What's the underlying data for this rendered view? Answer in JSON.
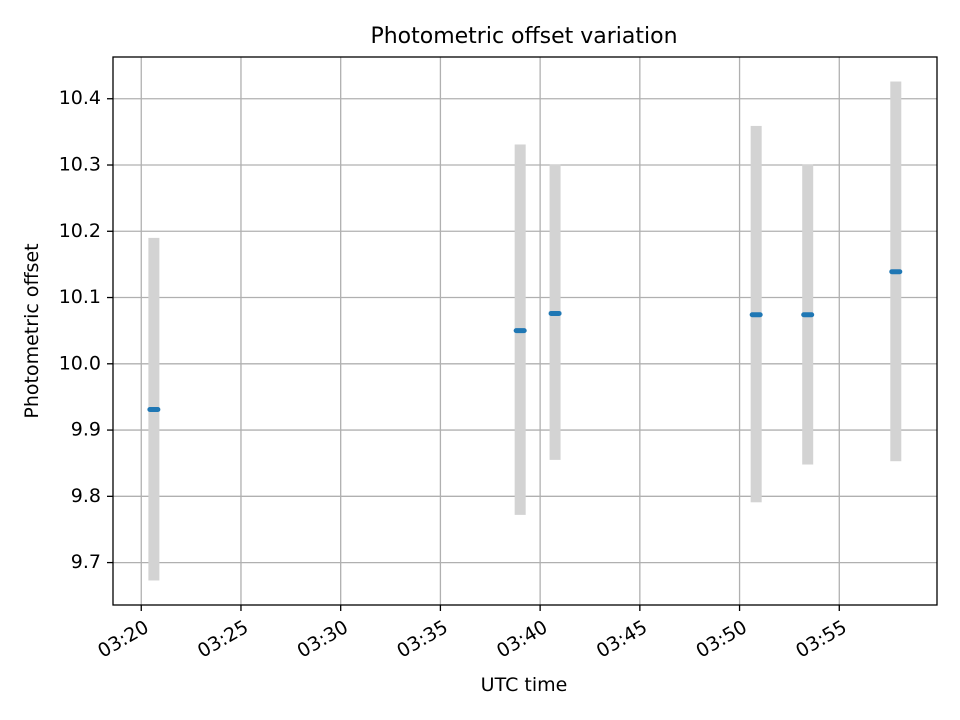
{
  "chart_data": {
    "type": "scatter",
    "title": "Photometric offset variation",
    "xlabel": "UTC time",
    "ylabel": "Photometric offset",
    "x_ticks": [
      "03:20",
      "03:25",
      "03:30",
      "03:35",
      "03:40",
      "03:45",
      "03:50",
      "03:55"
    ],
    "y_ticks": [
      "9.7",
      "9.8",
      "9.9",
      "10.0",
      "10.1",
      "10.2",
      "10.3",
      "10.4"
    ],
    "xlim": [
      "03:18:35",
      "03:59:54"
    ],
    "ylim": [
      9.636,
      10.463
    ],
    "grid": true,
    "colors": {
      "point": "#1f77b4",
      "errorbar": "#d3d3d3",
      "grid": "#b0b0b0"
    },
    "points": [
      {
        "x": "03:20:38",
        "y": 9.931,
        "low": 9.673,
        "high": 10.19
      },
      {
        "x": "03:39:00",
        "y": 10.05,
        "low": 9.772,
        "high": 10.331
      },
      {
        "x": "03:40:45",
        "y": 10.076,
        "low": 9.855,
        "high": 10.301
      },
      {
        "x": "03:50:50",
        "y": 10.074,
        "low": 9.791,
        "high": 10.359
      },
      {
        "x": "03:53:25",
        "y": 10.074,
        "low": 9.848,
        "high": 10.301
      },
      {
        "x": "03:57:50",
        "y": 10.139,
        "low": 9.853,
        "high": 10.426
      }
    ]
  }
}
